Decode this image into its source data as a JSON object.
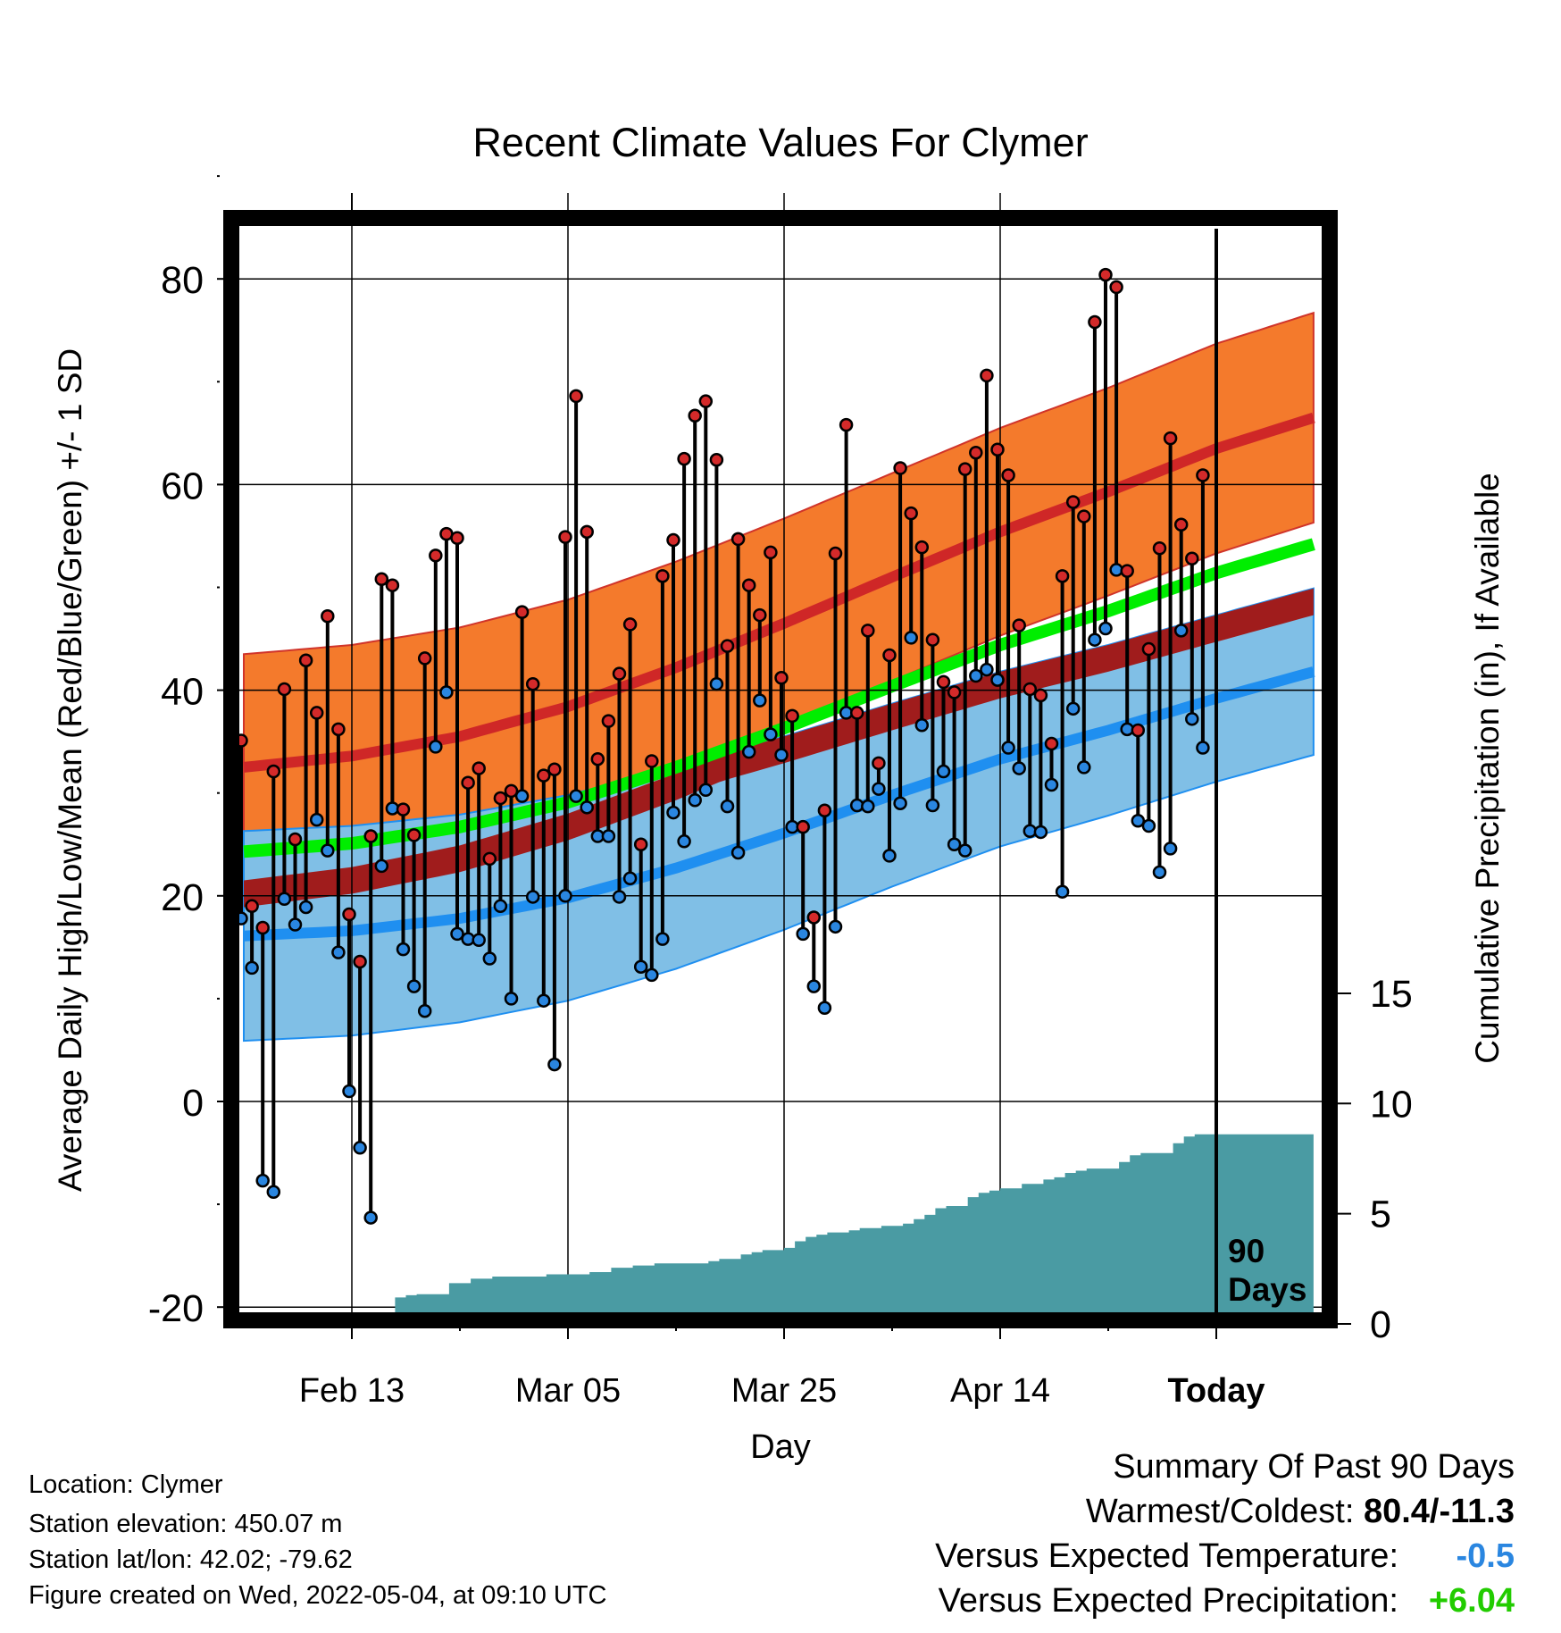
{
  "chart_data": {
    "type": "line",
    "title": "Recent Climate Values For Clymer",
    "xlabel": "Day",
    "ylabel": "Average Daily High/Low/Mean (Red/Blue/Green) +/- 1 SD",
    "y2label": "Cumulative Precipitation (in), If Available",
    "x_ticks": [
      "Feb 13",
      "Mar 05",
      "Mar 25",
      "Apr 14",
      "Today"
    ],
    "ylim": [
      -20,
      80
    ],
    "y_ticks": [
      "-20",
      "0",
      "20",
      "40",
      "60",
      "80"
    ],
    "y2lim": [
      0,
      15
    ],
    "y2_ticks": [
      "0",
      "5",
      "10",
      "15"
    ],
    "day_range": [
      -90,
      9
    ],
    "today_marker_label": "90 Days",
    "colors": {
      "high_band": "#f47a2c",
      "high_mean": "#cf2727",
      "low_band": "#80bfe6",
      "low_mean": "#1f8ff0",
      "mean_line": "#00ee00",
      "mean_band_dark": "#a01c1c",
      "precip": "#4a9ba3",
      "warm_dot": "#d42a2a",
      "cold_dot": "#2a86e0"
    },
    "normals": {
      "x": [
        -90,
        -80,
        -70,
        -60,
        -50,
        -40,
        -30,
        -20,
        -10,
        0,
        9
      ],
      "high_mean": [
        32.5,
        33.6,
        35.5,
        38.4,
        42.2,
        46.5,
        51.0,
        55.4,
        59.3,
        63.5,
        66.5
      ],
      "high_sd": [
        11,
        10.8,
        10.6,
        10.4,
        10.3,
        10.2,
        10.1,
        10.1,
        10.1,
        10.2,
        10.2
      ],
      "low_mean": [
        16.1,
        16.6,
        17.8,
        19.8,
        22.7,
        26.1,
        29.8,
        33.3,
        36.1,
        39.2,
        41.8
      ],
      "low_sd": [
        10.2,
        10.2,
        10.1,
        10.0,
        9.8,
        9.4,
        8.9,
        8.5,
        8.3,
        8.1,
        8.1
      ],
      "mean": [
        24.3,
        25.1,
        26.7,
        29.1,
        32.5,
        36.3,
        40.4,
        44.4,
        47.7,
        51.4,
        54.2
      ]
    },
    "series": [
      {
        "name": "High",
        "values": [
          35.1,
          19.0,
          16.9,
          32.1,
          40.1,
          25.5,
          42.9,
          37.8,
          47.2,
          36.2,
          18.2,
          13.6,
          25.8,
          50.8,
          50.2,
          28.4,
          25.9,
          43.1,
          53.1,
          55.2,
          54.8,
          31.0,
          32.4,
          23.6,
          29.5,
          30.2,
          47.6,
          40.6,
          31.7,
          32.3,
          54.9,
          68.6,
          55.4,
          33.3,
          37.0,
          41.6,
          46.4,
          25.0,
          33.1,
          51.1,
          54.6,
          62.5,
          66.7,
          68.1,
          62.4,
          44.3,
          54.7,
          50.2,
          47.3,
          53.4,
          41.2,
          37.5,
          26.7,
          17.9,
          28.3,
          53.3,
          65.8,
          37.8,
          45.8,
          32.9,
          43.4,
          61.6,
          57.2,
          53.9,
          44.9,
          40.8,
          39.8,
          61.5,
          63.1,
          70.6,
          63.4,
          60.9,
          46.3,
          40.1,
          39.5,
          34.8,
          51.1,
          58.3,
          56.9,
          75.8,
          80.4,
          79.2,
          51.6,
          36.1,
          44.0,
          53.8,
          64.5,
          56.1,
          52.8,
          60.9
        ]
      },
      {
        "name": "Low",
        "values": [
          17.8,
          13.0,
          -7.7,
          -8.8,
          19.7,
          17.2,
          18.9,
          27.4,
          24.4,
          14.5,
          1.0,
          -4.5,
          -11.3,
          22.9,
          28.5,
          14.8,
          11.2,
          8.8,
          34.5,
          39.8,
          16.3,
          15.8,
          15.7,
          13.9,
          19.0,
          10.0,
          29.7,
          19.9,
          9.8,
          3.6,
          20.0,
          29.7,
          28.6,
          25.8,
          25.8,
          19.9,
          21.7,
          13.1,
          12.3,
          15.8,
          28.1,
          25.3,
          29.3,
          30.3,
          40.6,
          28.7,
          24.2,
          34.0,
          39.0,
          35.7,
          33.7,
          26.7,
          16.3,
          11.2,
          9.1,
          17.0,
          37.8,
          28.8,
          28.7,
          30.4,
          23.9,
          29.0,
          45.1,
          36.6,
          28.8,
          32.1,
          25.0,
          24.4,
          41.4,
          42.0,
          41.0,
          34.4,
          32.4,
          26.3,
          26.2,
          30.8,
          20.4,
          38.2,
          32.5,
          44.9,
          46.0,
          51.7,
          36.2,
          27.3,
          26.8,
          22.3,
          24.6,
          45.8,
          37.2,
          34.4
        ]
      },
      {
        "name": "Cumulative Precipitation",
        "values": [
          0.2,
          0.3,
          0.3,
          0.3,
          0.3,
          0.35,
          0.35,
          0.45,
          0.5,
          0.5,
          0.5,
          0.5,
          0.5,
          0.5,
          1.2,
          1.3,
          1.35,
          1.35,
          1.35,
          1.85,
          1.85,
          2.05,
          2.05,
          2.15,
          2.15,
          2.15,
          2.15,
          2.15,
          2.25,
          2.25,
          2.25,
          2.25,
          2.35,
          2.35,
          2.55,
          2.55,
          2.65,
          2.65,
          2.75,
          2.75,
          2.75,
          2.75,
          2.75,
          2.85,
          2.95,
          2.95,
          3.15,
          3.25,
          3.35,
          3.35,
          3.45,
          3.75,
          3.95,
          4.05,
          4.15,
          4.15,
          4.25,
          4.35,
          4.35,
          4.45,
          4.45,
          4.55,
          4.75,
          4.95,
          5.25,
          5.35,
          5.35,
          5.75,
          5.95,
          6.05,
          6.15,
          6.15,
          6.35,
          6.35,
          6.55,
          6.65,
          6.85,
          6.95,
          7.05,
          7.05,
          7.05,
          7.35,
          7.65,
          7.75,
          7.75,
          7.75,
          8.2,
          8.5,
          8.6,
          8.6,
          8.6
        ]
      }
    ]
  },
  "footer": {
    "location": "Location: Clymer",
    "elevation": "Station elevation: 450.07 m",
    "latlon": "Station lat/lon: 42.02; -79.62",
    "created": "Figure created on Wed, 2022-05-04, at 09:10 UTC"
  },
  "summary": {
    "title": "Summary Of Past 90 Days",
    "warmest_label": "Warmest/Coldest: ",
    "warmest_value": "80.4/-11.3",
    "temp_label": "Versus Expected Temperature:",
    "temp_value": "-0.5",
    "temp_color": "#2a86e0",
    "precip_label": "Versus Expected Precipitation:",
    "precip_value": "+6.04",
    "precip_color": "#22cc00"
  }
}
